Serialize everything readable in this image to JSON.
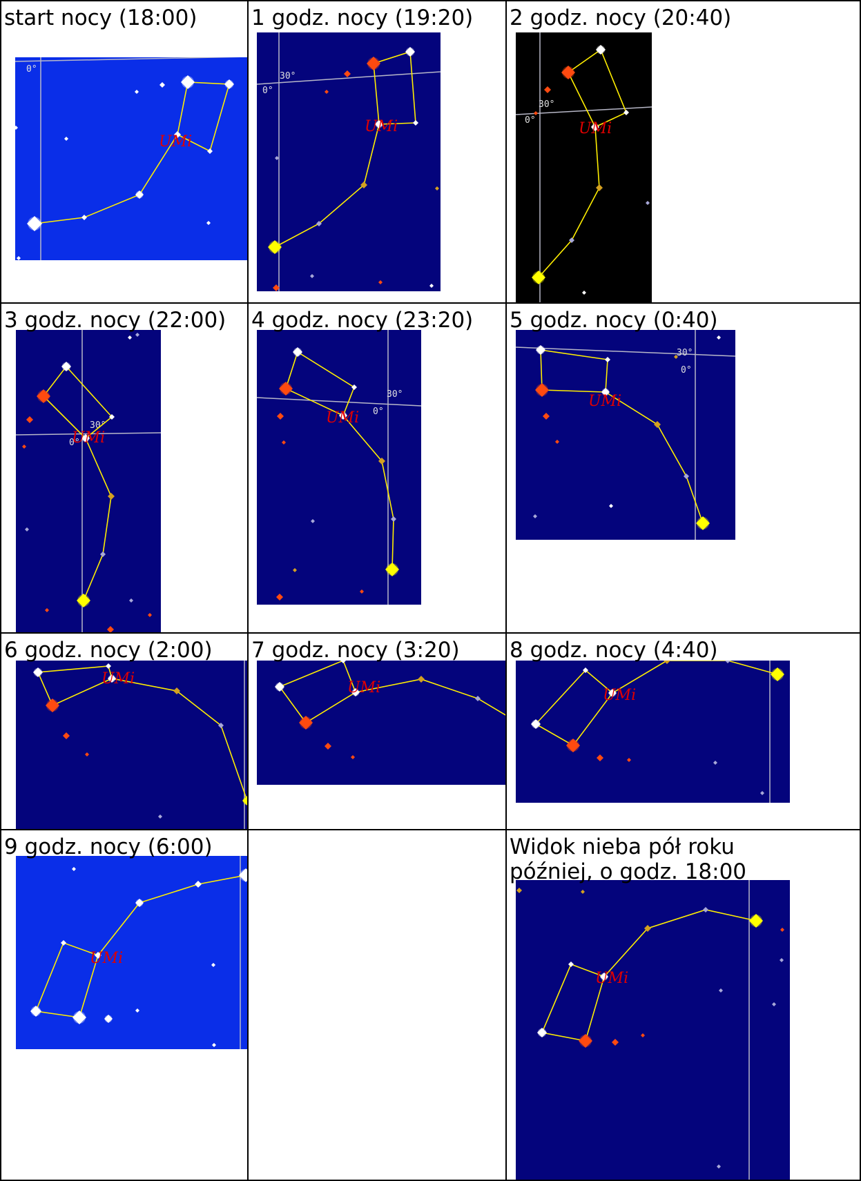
{
  "captions": {
    "c0": "start nocy (18:00)",
    "c1": "1 godz. nocy (19:20)",
    "c2": "2 godz. nocy (20:40)",
    "c3": "3 godz. nocy (22:00)",
    "c4": "4 godz. nocy (23:20)",
    "c5": "5 godz. nocy (0:40)",
    "c6": "6 godz. nocy (2:00)",
    "c7": "7 godz. nocy (3:20)",
    "c8": "8 godz. nocy (4:40)",
    "c9": "9 godz. nocy (6:00)",
    "c11": "Widok nieba pół roku później, o godz. 18:00"
  },
  "constellation_label": "UMi",
  "grid_labels": {
    "alt": "30°",
    "az": "0°"
  },
  "colors": {
    "sky_day": "#0a2ee8",
    "sky_night": "#04047c",
    "sky_black": "#000000",
    "line": "#ffee00",
    "label": "#e00000",
    "grid": "#b8b8c8"
  }
}
